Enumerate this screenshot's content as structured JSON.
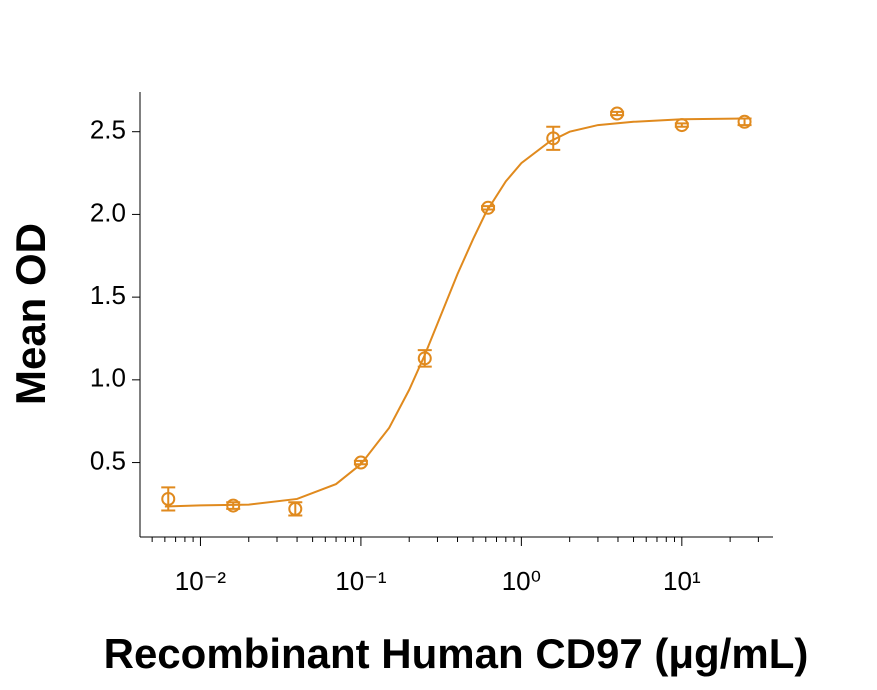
{
  "chart_data": {
    "type": "scatter",
    "xlabel": "Recombinant Human CD97 (μg/mL)",
    "ylabel": "Mean OD",
    "xscale": "log",
    "xlim": [
      0.0042,
      37
    ],
    "ylim": [
      0.05,
      2.74
    ],
    "xticks": [
      {
        "value": 0.01,
        "label": "10⁻²"
      },
      {
        "value": 0.1,
        "label": "10⁻¹"
      },
      {
        "value": 1,
        "label": "10⁰"
      },
      {
        "value": 10,
        "label": "10¹"
      }
    ],
    "yticks": [
      0.5,
      {
        "value": 1,
        "label": "1.0"
      },
      1.5,
      {
        "value": 2,
        "label": "2.0"
      },
      2.5
    ],
    "color": "#e08a1e",
    "series": [
      {
        "x": [
          0.0063,
          0.016,
          0.039,
          0.1,
          0.25,
          0.62,
          1.58,
          3.95,
          10,
          24.6
        ],
        "values": [
          0.28,
          0.24,
          0.22,
          0.5,
          1.13,
          2.04,
          2.46,
          2.61,
          2.54,
          2.56
        ],
        "errors": [
          0.07,
          0.02,
          0.04,
          0.01,
          0.05,
          0.01,
          0.07,
          0.01,
          0.01,
          0.02
        ]
      },
      {
        "x": [
          0.006,
          0.01,
          0.02,
          0.04,
          0.07,
          0.1,
          0.15,
          0.2,
          0.25,
          0.3,
          0.4,
          0.5,
          0.6,
          0.8,
          1,
          1.5,
          2,
          3,
          5,
          10,
          25
        ],
        "values": [
          0.234,
          0.241,
          0.246,
          0.28,
          0.37,
          0.49,
          0.71,
          0.94,
          1.15,
          1.34,
          1.64,
          1.85,
          2.01,
          2.2,
          2.31,
          2.44,
          2.5,
          2.54,
          2.56,
          2.575,
          2.58
        ]
      }
    ]
  }
}
